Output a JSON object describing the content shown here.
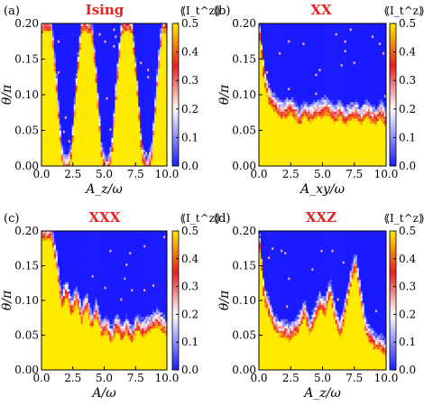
{
  "figure": {
    "colormap": [
      "#1a1aff",
      "#ffffff",
      "#e82020",
      "#ffea00"
    ]
  },
  "chart_data": [
    {
      "panel_label": "(a)",
      "title": "Ising",
      "type": "heatmap",
      "xlabel": "A_z/ω",
      "ylabel": "θ/π",
      "xlim": [
        0,
        10
      ],
      "ylim": [
        0,
        0.2
      ],
      "xticks": [
        "0.0",
        "2.5",
        "5.0",
        "7.5",
        "10.0"
      ],
      "yticks": [
        "0.00",
        "0.05",
        "0.10",
        "0.15",
        "0.20"
      ],
      "colorbar": {
        "label": "⟪I_t^z⟫",
        "range": [
          0,
          0.5
        ],
        "ticks": [
          "0.0",
          "0.1",
          "0.2",
          "0.3",
          "0.4",
          "0.5"
        ]
      },
      "z_profile": {
        "boundary_x": [
          0,
          0.4,
          0.8,
          1.2,
          1.6,
          2.0,
          2.4,
          2.8,
          3.2,
          3.6,
          4.0,
          4.4,
          4.8,
          5.2,
          5.6,
          6.0,
          6.4,
          6.8,
          7.2,
          7.6,
          8.0,
          8.4,
          8.8,
          9.2,
          9.6,
          10.0
        ],
        "boundary_theta": [
          0.2,
          0.2,
          0.2,
          0.12,
          0.02,
          0.0,
          0.02,
          0.12,
          0.2,
          0.2,
          0.2,
          0.12,
          0.02,
          0.0,
          0.02,
          0.12,
          0.2,
          0.2,
          0.2,
          0.12,
          0.02,
          0.0,
          0.02,
          0.12,
          0.2,
          0.2
        ],
        "below_value": 0.5,
        "above_value": 0.0
      }
    },
    {
      "panel_label": "(b)",
      "title": "XX",
      "type": "heatmap",
      "xlabel": "A_xy/ω",
      "ylabel": "θ/π",
      "xlim": [
        0,
        10
      ],
      "ylim": [
        0,
        0.2
      ],
      "xticks": [
        "0.0",
        "2.5",
        "5.0",
        "7.5",
        "10.0"
      ],
      "yticks": [
        "0.00",
        "0.05",
        "0.10",
        "0.15",
        "0.20"
      ],
      "colorbar": {
        "label": "⟪I_t^z⟫",
        "range": [
          0,
          0.5
        ],
        "ticks": [
          "0.0",
          "0.1",
          "0.2",
          "0.3",
          "0.4",
          "0.5"
        ]
      },
      "z_profile": {
        "boundary_x": [
          0,
          0.4,
          0.8,
          1.2,
          1.6,
          2.0,
          2.4,
          2.8,
          3.2,
          3.6,
          4.0,
          4.4,
          4.8,
          5.2,
          5.6,
          6.0,
          6.4,
          6.8,
          7.2,
          7.6,
          8.0,
          8.4,
          8.8,
          9.2,
          9.6,
          10.0
        ],
        "boundary_theta": [
          0.2,
          0.13,
          0.1,
          0.09,
          0.08,
          0.08,
          0.085,
          0.08,
          0.07,
          0.08,
          0.075,
          0.08,
          0.08,
          0.085,
          0.08,
          0.075,
          0.08,
          0.07,
          0.075,
          0.08,
          0.07,
          0.08,
          0.075,
          0.07,
          0.08,
          0.07
        ],
        "below_value": 0.5,
        "above_value": 0.0
      }
    },
    {
      "panel_label": "(c)",
      "title": "XXX",
      "type": "heatmap",
      "xlabel": "A/ω",
      "ylabel": "θ/π",
      "xlim": [
        0,
        10
      ],
      "ylim": [
        0,
        0.2
      ],
      "xticks": [
        "0.0",
        "2.5",
        "5.0",
        "7.5",
        "10.0"
      ],
      "yticks": [
        "0.00",
        "0.05",
        "0.10",
        "0.15",
        "0.20"
      ],
      "colorbar": {
        "label": "⟪I_t^z⟫",
        "range": [
          0,
          0.5
        ],
        "ticks": [
          "0.0",
          "0.1",
          "0.2",
          "0.3",
          "0.4",
          "0.5"
        ]
      },
      "z_profile": {
        "boundary_x": [
          0,
          0.4,
          0.8,
          1.2,
          1.6,
          2.0,
          2.4,
          2.8,
          3.2,
          3.6,
          4.0,
          4.4,
          4.8,
          5.2,
          5.6,
          6.0,
          6.4,
          6.8,
          7.2,
          7.6,
          8.0,
          8.4,
          8.8,
          9.2,
          9.6,
          10.0
        ],
        "boundary_theta": [
          0.2,
          0.2,
          0.2,
          0.16,
          0.1,
          0.12,
          0.09,
          0.11,
          0.08,
          0.1,
          0.07,
          0.09,
          0.06,
          0.065,
          0.05,
          0.07,
          0.055,
          0.065,
          0.05,
          0.07,
          0.06,
          0.065,
          0.07,
          0.075,
          0.07,
          0.06
        ],
        "below_value": 0.5,
        "above_value": 0.0
      }
    },
    {
      "panel_label": "(d)",
      "title": "XXZ",
      "type": "heatmap",
      "xlabel": "A_z/ω",
      "ylabel": "θ/π",
      "xlim": [
        0,
        10
      ],
      "ylim": [
        0,
        0.2
      ],
      "xticks": [
        "0.0",
        "2.5",
        "5.0",
        "7.5",
        "10.0"
      ],
      "yticks": [
        "0.00",
        "0.05",
        "0.10",
        "0.15",
        "0.20"
      ],
      "colorbar": {
        "label": "⟪I_t^z⟫",
        "range": [
          0,
          0.5
        ],
        "ticks": [
          "0.0",
          "0.1",
          "0.2",
          "0.3",
          "0.4",
          "0.5"
        ]
      },
      "z_profile": {
        "boundary_x": [
          0,
          0.4,
          0.8,
          1.2,
          1.6,
          2.0,
          2.4,
          2.8,
          3.2,
          3.6,
          4.0,
          4.4,
          4.8,
          5.2,
          5.6,
          6.0,
          6.4,
          6.8,
          7.2,
          7.6,
          8.0,
          8.4,
          8.8,
          9.2,
          9.6,
          10.0
        ],
        "boundary_theta": [
          0.2,
          0.11,
          0.09,
          0.07,
          0.06,
          0.06,
          0.055,
          0.06,
          0.07,
          0.09,
          0.06,
          0.08,
          0.1,
          0.09,
          0.12,
          0.08,
          0.06,
          0.09,
          0.13,
          0.16,
          0.11,
          0.06,
          0.05,
          0.04,
          0.04,
          0.03
        ],
        "below_value": 0.5,
        "above_value": 0.0
      }
    }
  ]
}
